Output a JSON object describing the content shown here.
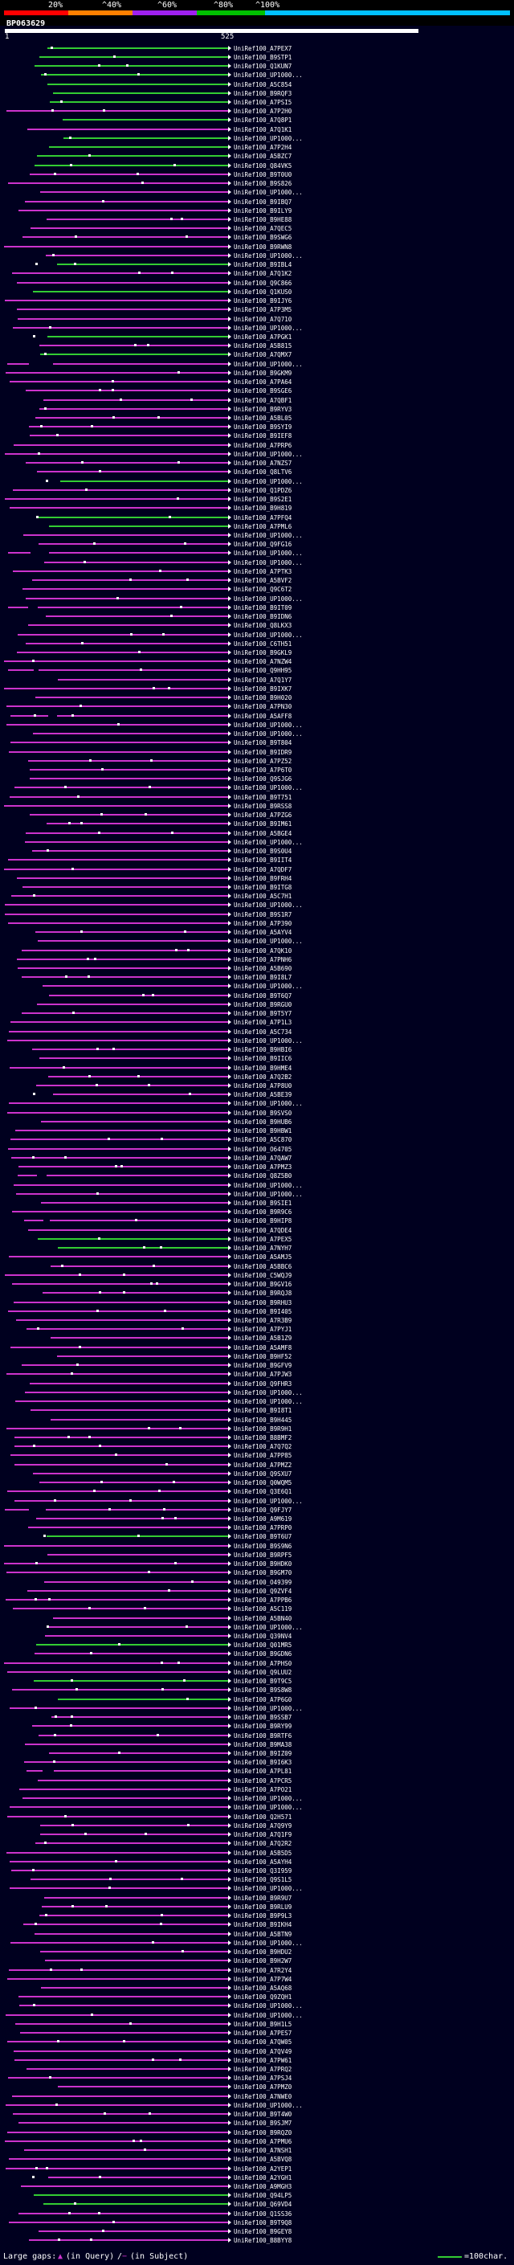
{
  "header": {
    "percent_labels": [
      "20%",
      "^40%",
      "^60%",
      "^80%",
      "^100%"
    ],
    "colors": [
      "#ff0000",
      "#ff8000",
      "#a020f0",
      "#00c000",
      "#00c0ff"
    ],
    "query_id": "BP063629",
    "start_pos": "1",
    "end_pos": "525"
  },
  "hit_colors": {
    "magenta": "#cc33cc",
    "green": "#33cc33",
    "white": "#ffffff"
  },
  "hits": [
    "UniRef100_A7PEX7",
    "UniRef100_B9STP1",
    "UniRef100_Q1KUN7",
    "UniRef100_UP1000...",
    "UniRef100_A5C854",
    "UniRef100_B9RQF3",
    "UniRef100_A7PSI5",
    "UniRef100_A7P2H0",
    "UniRef100_A7Q8P1",
    "UniRef100_A7Q1K1",
    "UniRef100_UP1000...",
    "UniRef100_A7P2H4",
    "UniRef100_A5BZC7",
    "UniRef100_Q84VK5",
    "UniRef100_B9T0U0",
    "UniRef100_B9S826",
    "UniRef100_UP1000...",
    "UniRef100_B9IBQ7",
    "UniRef100_B9ILY9",
    "UniRef100_B9HE88",
    "UniRef100_A7QEC5",
    "UniRef100_B9SWG6",
    "UniRef100_B9RWN8",
    "UniRef100_UP1000...",
    "UniRef100_B9IBL4",
    "UniRef100_A7Q1K2",
    "UniRef100_Q9C866",
    "UniRef100_Q1KUS0",
    "UniRef100_B9IJY6",
    "UniRef100_A7P3M5",
    "UniRef100_A7Q710",
    "UniRef100_UP1000...",
    "UniRef100_A7PGK1",
    "UniRef100_A5B815",
    "UniRef100_A7QMX7",
    "UniRef100_UP1000...",
    "UniRef100_B9GKM9",
    "UniRef100_A7PA64",
    "UniRef100_B9SGE6",
    "UniRef100_A7QBF1",
    "UniRef100_B9RYV3",
    "UniRef100_A5BL05",
    "UniRef100_B9SYI9",
    "UniRef100_B9IEF8",
    "UniRef100_A7PRP6",
    "UniRef100_UP1000...",
    "UniRef100_A7NZS7",
    "UniRef100_Q8LTV6",
    "UniRef100_UP1000...",
    "UniRef100_Q1PDZ6",
    "UniRef100_B9S2E1",
    "UniRef100_B9H819",
    "UniRef100_A7PFQ4",
    "UniRef100_A7PML6",
    "UniRef100_UP1000...",
    "UniRef100_Q9FG16",
    "UniRef100_UP1000...",
    "UniRef100_UP1000...",
    "UniRef100_A7PTK3",
    "UniRef100_A5BVF2",
    "UniRef100_Q9C6T2",
    "UniRef100_UP1000...",
    "UniRef100_B9IT09",
    "UniRef100_B9IDN6",
    "UniRef100_Q8LKX3",
    "UniRef100_UP1000...",
    "UniRef100_C6TH51",
    "UniRef100_B9GKL9",
    "UniRef100_A7NZW4",
    "UniRef100_Q9HH95",
    "UniRef100_A7Q1Y7",
    "UniRef100_B9IXK7",
    "UniRef100_B9H020",
    "UniRef100_A7PN30",
    "UniRef100_A5AFF8",
    "UniRef100_UP1000...",
    "UniRef100_UP1000...",
    "UniRef100_B9T804",
    "UniRef100_B9IDR9",
    "UniRef100_A7PZ52",
    "UniRef100_A7P6T0",
    "UniRef100_Q9SJG6",
    "UniRef100_UP1000...",
    "UniRef100_B9T751",
    "UniRef100_B9RSS8",
    "UniRef100_A7PZG6",
    "UniRef100_B9IM61",
    "UniRef100_A5BGE4",
    "UniRef100_UP1000...",
    "UniRef100_B9S0U4",
    "UniRef100_B9IIT4",
    "UniRef100_A7QDF7",
    "UniRef100_B9FRH4",
    "UniRef100_B9ITG8",
    "UniRef100_A5C7H1",
    "UniRef100_UP1000...",
    "UniRef100_B9S1R7",
    "UniRef100_A7P390",
    "UniRef100_A5AYV4",
    "UniRef100_UP1000...",
    "UniRef100_A7QK10",
    "UniRef100_A7PNH6",
    "UniRef100_A5B690",
    "UniRef100_B9I8L7",
    "UniRef100_UP1000...",
    "UniRef100_B9T6Q7",
    "UniRef100_B9RGU0",
    "UniRef100_B9T5Y7",
    "UniRef100_A7P1L3",
    "UniRef100_A5C734",
    "UniRef100_UP1000...",
    "UniRef100_B9HBI6",
    "UniRef100_B9IIC6",
    "UniRef100_B9HME4",
    "UniRef100_A7Q2B2",
    "UniRef100_A7P8U0",
    "UniRef100_A5BE39",
    "UniRef100_UP1000...",
    "UniRef100_B9SVS0",
    "UniRef100_B9HUB6",
    "UniRef100_B9HBW1",
    "UniRef100_A5C870",
    "UniRef100_O64705",
    "UniRef100_A7QAW7",
    "UniRef100_A7PMZ3",
    "UniRef100_Q8Z5B0",
    "UniRef100_UP1000...",
    "UniRef100_UP1000...",
    "UniRef100_B9SIE1",
    "UniRef100_B9R9C6",
    "UniRef100_B9HIP8",
    "UniRef100_A7QDE4",
    "UniRef100_A7PEX5",
    "UniRef100_A7NYH7",
    "UniRef100_A5AMJ5",
    "UniRef100_A5BBC6",
    "UniRef100_C5WQJ9",
    "UniRef100_B9GV16",
    "UniRef100_B9RQJ8",
    "UniRef100_B9RHU3",
    "UniRef100_B9I405",
    "UniRef100_A7R3B9",
    "UniRef100_A7PYJ1",
    "UniRef100_A5B1Z9",
    "UniRef100_A5AMF8",
    "UniRef100_B9HF52",
    "UniRef100_B9GFV9",
    "UniRef100_A7PJW3",
    "UniRef100_Q9FHR3",
    "UniRef100_UP1000...",
    "UniRef100_UP1000...",
    "UniRef100_B9I8T1",
    "UniRef100_B9H445",
    "UniRef100_B9R9H1",
    "UniRef100_B8BMF2",
    "UniRef100_A7Q7Q2",
    "UniRef100_A7PP85",
    "UniRef100_A7PMZ2",
    "UniRef100_Q9SXU7",
    "UniRef100_Q0WQM5",
    "UniRef100_Q3E6Q1",
    "UniRef100_UP1000...",
    "UniRef100_Q9FJY7",
    "UniRef100_A9M619",
    "UniRef100_A7PRP0",
    "UniRef100_B9T6U7",
    "UniRef100_B9S9N6",
    "UniRef100_B9RPF5",
    "UniRef100_B9HDK0",
    "UniRef100_B9GM70",
    "UniRef100_O49399",
    "UniRef100_Q9ZVF4",
    "UniRef100_A7PPB6",
    "UniRef100_A5C119",
    "UniRef100_A5BN40",
    "UniRef100_UP1000...",
    "UniRef100_Q39NV4",
    "UniRef100_Q01MR5",
    "UniRef100_B9GDN6",
    "UniRef100_A7PHS0",
    "UniRef100_Q9LUU2",
    "UniRef100_B9T9C5",
    "UniRef100_B9S8W8",
    "UniRef100_A7P6G0",
    "UniRef100_UP1000...",
    "UniRef100_B9SSB7",
    "UniRef100_B9RY99",
    "UniRef100_B9RTF6",
    "UniRef100_B9MA38",
    "UniRef100_B9IZ09",
    "UniRef100_B9I6K3",
    "UniRef100_A7PL81",
    "UniRef100_A7PCR5",
    "UniRef100_A7PO21",
    "UniRef100_UP1000...",
    "UniRef100_UP1000...",
    "UniRef100_Q2H571",
    "UniRef100_A7Q9Y9",
    "UniRef100_A7Q1F9",
    "UniRef100_A7Q2R2",
    "UniRef100_A5B5D5",
    "UniRef100_A5AYH4",
    "UniRef100_Q3I959",
    "UniRef100_Q9S1L5",
    "UniRef100_UP1000...",
    "UniRef100_B9R9U7",
    "UniRef100_B9RLU9",
    "UniRef100_B9P9L3",
    "UniRef100_B9IKH4",
    "UniRef100_A5BTN9",
    "UniRef100_UP1000...",
    "UniRef100_B9HDU2",
    "UniRef100_B9H2W7",
    "UniRef100_A7R2Y4",
    "UniRef100_A7P7W4",
    "UniRef100_A5AQ68",
    "UniRef100_Q9ZQH1",
    "UniRef100_UP1000...",
    "UniRef100_UP1000...",
    "UniRef100_B9H1L5",
    "UniRef100_A7PES7",
    "UniRef100_A7QW05",
    "UniRef100_A7QV49",
    "UniRef100_A7PW61",
    "UniRef100_A7PRQ2",
    "UniRef100_A7PSJ4",
    "UniRef100_A7PMZ0",
    "UniRef100_A7NWE0",
    "UniRef100_UP1000...",
    "UniRef100_B9T4W0",
    "UniRef100_B9SJM7",
    "UniRef100_B9RQZ0",
    "UniRef100_A7PMU6",
    "UniRef100_A7NSH1",
    "UniRef100_A5BVQ8",
    "UniRef100_A2YEP1",
    "UniRef100_A2YGH1",
    "UniRef100_A9MGH3",
    "UniRef100_Q94LP5",
    "UniRef100_Q69VD4",
    "UniRef100_Q1SS36",
    "UniRef100_B9T9Q8",
    "UniRef100_B9GEY8",
    "UniRef100_B8BYY8"
  ],
  "footer": {
    "large_gaps_label": "Large gaps:",
    "in_query_label": "(in Query)",
    "in_subject_label": "(in Subject)",
    "scale_label": "=100char."
  }
}
